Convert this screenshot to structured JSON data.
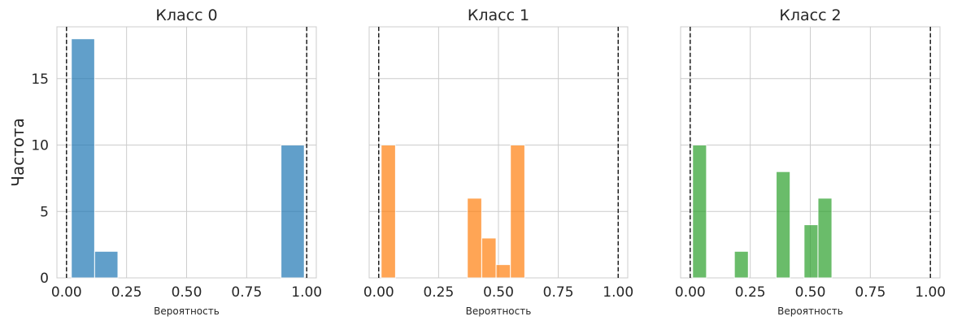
{
  "chart_data": [
    {
      "type": "bar",
      "title": "Класс 0",
      "xlabel": "Вероятность",
      "ylabel": "Частота",
      "color": "#1f77b4",
      "xlim": [
        -0.04,
        1.04
      ],
      "ylim": [
        0,
        18.9
      ],
      "xticks": [
        "0.00",
        "0.25",
        "0.50",
        "0.75",
        "1.00"
      ],
      "yticks": [
        "0",
        "5",
        "10",
        "15"
      ],
      "reference_lines_x": [
        0.0,
        1.0
      ],
      "bins": [
        {
          "x0": 0.02,
          "x1": 0.117,
          "value": 18
        },
        {
          "x0": 0.117,
          "x1": 0.214,
          "value": 2
        },
        {
          "x0": 0.893,
          "x1": 0.99,
          "value": 10
        }
      ]
    },
    {
      "type": "bar",
      "title": "Класс 1",
      "xlabel": "Вероятность",
      "ylabel": "",
      "color": "#ff7f0e",
      "xlim": [
        -0.04,
        1.04
      ],
      "ylim": [
        0,
        18.9
      ],
      "xticks": [
        "0.00",
        "0.25",
        "0.50",
        "0.75",
        "1.00"
      ],
      "yticks": [],
      "reference_lines_x": [
        0.0,
        1.0
      ],
      "bins": [
        {
          "x0": 0.01,
          "x1": 0.07,
          "value": 10
        },
        {
          "x0": 0.37,
          "x1": 0.43,
          "value": 6
        },
        {
          "x0": 0.43,
          "x1": 0.49,
          "value": 3
        },
        {
          "x0": 0.49,
          "x1": 0.55,
          "value": 1
        },
        {
          "x0": 0.55,
          "x1": 0.61,
          "value": 10
        }
      ]
    },
    {
      "type": "bar",
      "title": "Класс 2",
      "xlabel": "Вероятность",
      "ylabel": "",
      "color": "#2ca02c",
      "xlim": [
        -0.04,
        1.04
      ],
      "ylim": [
        0,
        18.9
      ],
      "xticks": [
        "0.00",
        "0.25",
        "0.50",
        "0.75",
        "1.00"
      ],
      "yticks": [],
      "reference_lines_x": [
        0.0,
        1.0
      ],
      "bins": [
        {
          "x0": 0.01,
          "x1": 0.068,
          "value": 10
        },
        {
          "x0": 0.184,
          "x1": 0.242,
          "value": 2
        },
        {
          "x0": 0.358,
          "x1": 0.416,
          "value": 8
        },
        {
          "x0": 0.474,
          "x1": 0.532,
          "value": 4
        },
        {
          "x0": 0.532,
          "x1": 0.59,
          "value": 6
        }
      ]
    }
  ]
}
